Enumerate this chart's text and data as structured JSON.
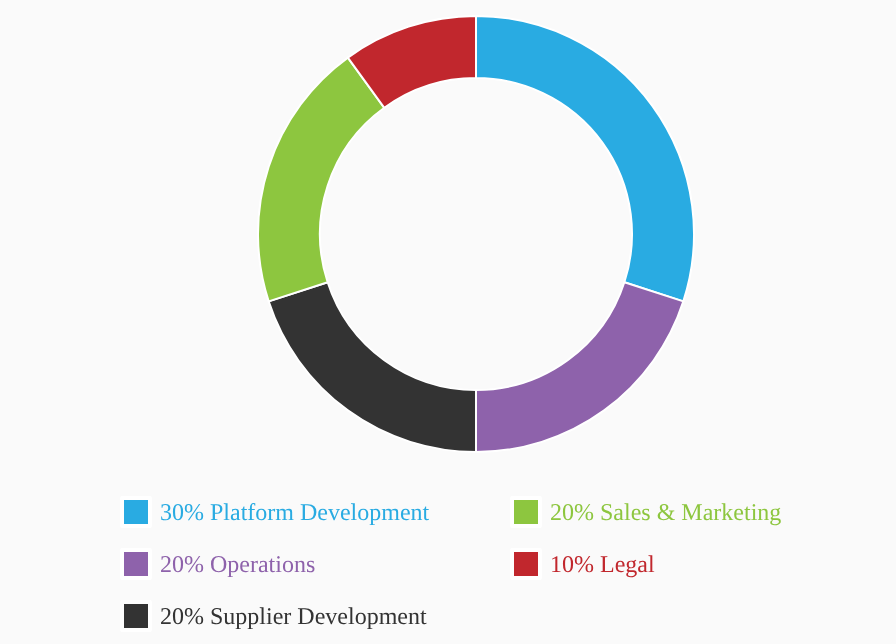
{
  "chart_data": {
    "type": "donut",
    "categories": [
      "30% Platform Development",
      "20% Operations",
      "20% Supplier Development",
      "20% Sales & Marketing",
      "10% Legal"
    ],
    "values": [
      30,
      20,
      20,
      20,
      10
    ],
    "colors": [
      "#29abe2",
      "#8e62ab",
      "#333333",
      "#8dc63f",
      "#c1272d"
    ],
    "legend": "bottom"
  }
}
